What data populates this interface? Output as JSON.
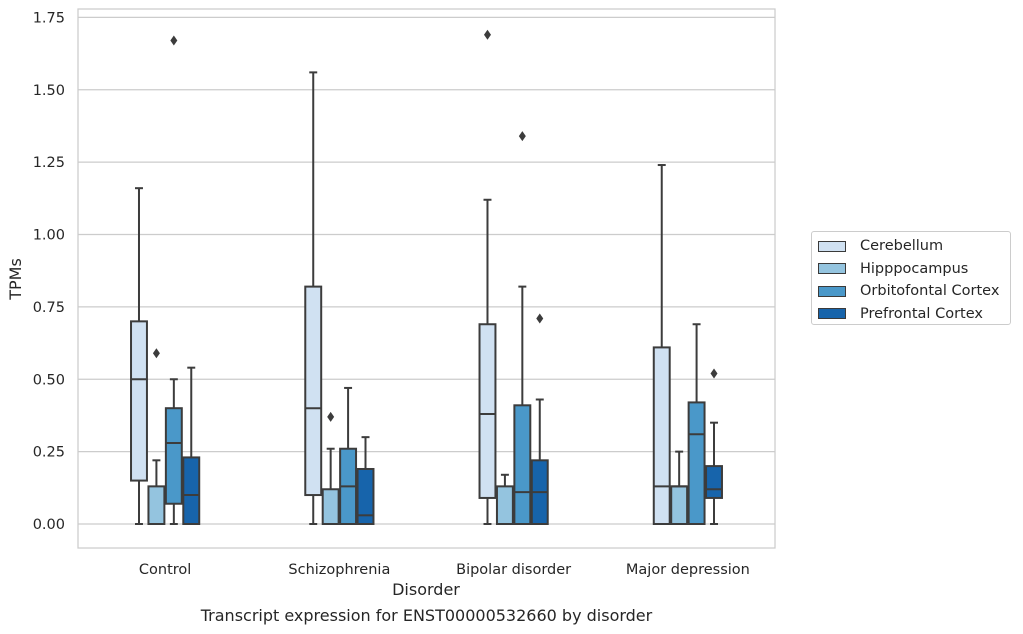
{
  "chart_data": {
    "type": "box",
    "caption": "Transcript expression for ENST00000532660 by disorder",
    "xlabel": "Disorder",
    "ylabel": "TPMs",
    "ylim": [
      -0.08,
      1.77
    ],
    "yticks": [
      "0.00",
      "0.25",
      "0.50",
      "0.75",
      "1.00",
      "1.25",
      "1.50",
      "1.75"
    ],
    "ytick_values": [
      0,
      0.25,
      0.5,
      0.75,
      1.0,
      1.25,
      1.5,
      1.75
    ],
    "grid": "horizontal",
    "legend_position": "right",
    "categories": [
      "Control",
      "Schizophrenia",
      "Bipolar disorder",
      "Major depression"
    ],
    "series": [
      {
        "name": "Cerebellum",
        "color": "#d0e1f2",
        "boxes": [
          {
            "whislo": 0.0,
            "q1": 0.15,
            "med": 0.5,
            "q3": 0.7,
            "whishi": 1.16,
            "fliers": []
          },
          {
            "whislo": 0.0,
            "q1": 0.1,
            "med": 0.4,
            "q3": 0.82,
            "whishi": 1.56,
            "fliers": []
          },
          {
            "whislo": 0.0,
            "q1": 0.09,
            "med": 0.38,
            "q3": 0.69,
            "whishi": 1.12,
            "fliers": [
              1.69
            ]
          },
          {
            "whislo": 0.0,
            "q1": 0.0,
            "med": 0.13,
            "q3": 0.61,
            "whishi": 1.24,
            "fliers": []
          }
        ]
      },
      {
        "name": "Hipppocampus",
        "color": "#94c4df",
        "boxes": [
          {
            "whislo": 0.0,
            "q1": 0.0,
            "med": 0.0,
            "q3": 0.13,
            "whishi": 0.22,
            "fliers": [
              0.59
            ]
          },
          {
            "whislo": 0.0,
            "q1": 0.0,
            "med": 0.0,
            "q3": 0.12,
            "whishi": 0.26,
            "fliers": [
              0.37
            ]
          },
          {
            "whislo": 0.0,
            "q1": 0.0,
            "med": 0.0,
            "q3": 0.13,
            "whishi": 0.17,
            "fliers": []
          },
          {
            "whislo": 0.0,
            "q1": 0.0,
            "med": 0.13,
            "q3": 0.13,
            "whishi": 0.25,
            "fliers": []
          }
        ]
      },
      {
        "name": "Orbitofontal Cortex",
        "color": "#4a98c9",
        "boxes": [
          {
            "whislo": 0.0,
            "q1": 0.07,
            "med": 0.28,
            "q3": 0.4,
            "whishi": 0.5,
            "fliers": [
              1.67
            ]
          },
          {
            "whislo": 0.0,
            "q1": 0.0,
            "med": 0.13,
            "q3": 0.26,
            "whishi": 0.47,
            "fliers": []
          },
          {
            "whislo": 0.0,
            "q1": 0.0,
            "med": 0.11,
            "q3": 0.41,
            "whishi": 0.82,
            "fliers": [
              1.34
            ]
          },
          {
            "whislo": 0.0,
            "q1": 0.0,
            "med": 0.31,
            "q3": 0.42,
            "whishi": 0.69,
            "fliers": []
          }
        ]
      },
      {
        "name": "Prefrontal Cortex",
        "color": "#1764ab",
        "boxes": [
          {
            "whislo": 0.0,
            "q1": 0.0,
            "med": 0.1,
            "q3": 0.23,
            "whishi": 0.54,
            "fliers": []
          },
          {
            "whislo": 0.0,
            "q1": 0.0,
            "med": 0.03,
            "q3": 0.19,
            "whishi": 0.3,
            "fliers": []
          },
          {
            "whislo": 0.0,
            "q1": 0.0,
            "med": 0.11,
            "q3": 0.22,
            "whishi": 0.43,
            "fliers": [
              0.71
            ]
          },
          {
            "whislo": 0.0,
            "q1": 0.09,
            "med": 0.12,
            "q3": 0.2,
            "whishi": 0.35,
            "fliers": [
              0.52
            ]
          }
        ]
      }
    ]
  }
}
